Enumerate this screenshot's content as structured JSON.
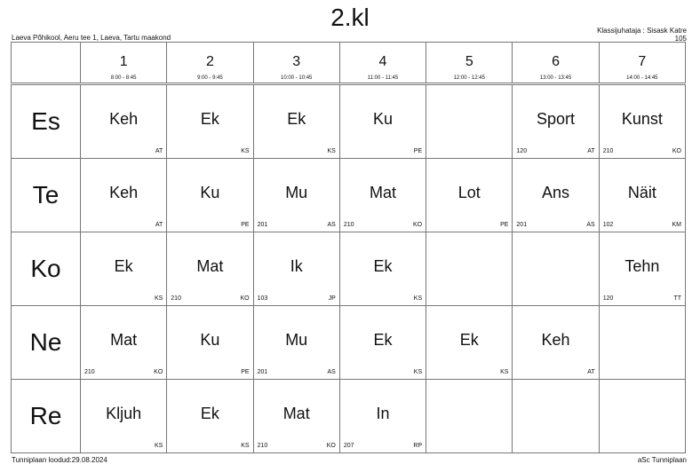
{
  "title": "2.kl",
  "school": "Laeva Põhikool, Aeru tee 1, Laeva, Tartu maakond",
  "class_teacher": "Klassijuhataja : Sisask Katre",
  "class_room": "105",
  "footer_left": "Tunniplaan loodud:29.08.2024",
  "footer_right": "aSc Tunniplaan",
  "periods": [
    {
      "num": "1",
      "time": "8:00 - 8:45"
    },
    {
      "num": "2",
      "time": "9:00 - 9:45"
    },
    {
      "num": "3",
      "time": "10:00 - 10:45"
    },
    {
      "num": "4",
      "time": "11:00 - 11:45"
    },
    {
      "num": "5",
      "time": "12:00 - 12:45"
    },
    {
      "num": "6",
      "time": "13:00 - 13:45"
    },
    {
      "num": "7",
      "time": "14:00 - 14:45"
    }
  ],
  "days": [
    {
      "name": "Es",
      "lessons": [
        {
          "s": "Keh",
          "r": "",
          "t": "AT"
        },
        {
          "s": "Ek",
          "r": "",
          "t": "KS"
        },
        {
          "s": "Ek",
          "r": "",
          "t": "KS"
        },
        {
          "s": "Ku",
          "r": "",
          "t": "PE"
        },
        null,
        {
          "s": "Sport",
          "r": "120",
          "t": "AT"
        },
        {
          "s": "Kunst",
          "r": "210",
          "t": "KO"
        }
      ]
    },
    {
      "name": "Te",
      "lessons": [
        {
          "s": "Keh",
          "r": "",
          "t": "AT"
        },
        {
          "s": "Ku",
          "r": "",
          "t": "PE"
        },
        {
          "s": "Mu",
          "r": "201",
          "t": "AS"
        },
        {
          "s": "Mat",
          "r": "210",
          "t": "KO"
        },
        {
          "s": "Lot",
          "r": "",
          "t": "PE"
        },
        {
          "s": "Ans",
          "r": "201",
          "t": "AS"
        },
        {
          "s": "Näit",
          "r": "102",
          "t": "KM"
        }
      ]
    },
    {
      "name": "Ko",
      "lessons": [
        {
          "s": "Ek",
          "r": "",
          "t": "KS"
        },
        {
          "s": "Mat",
          "r": "210",
          "t": "KO"
        },
        {
          "s": "Ik",
          "r": "103",
          "t": "JP"
        },
        {
          "s": "Ek",
          "r": "",
          "t": "KS"
        },
        null,
        null,
        {
          "s": "Tehn",
          "r": "120",
          "t": "TT"
        }
      ]
    },
    {
      "name": "Ne",
      "lessons": [
        {
          "s": "Mat",
          "r": "210",
          "t": "KO"
        },
        {
          "s": "Ku",
          "r": "",
          "t": "PE"
        },
        {
          "s": "Mu",
          "r": "201",
          "t": "AS"
        },
        {
          "s": "Ek",
          "r": "",
          "t": "KS"
        },
        {
          "s": "Ek",
          "r": "",
          "t": "KS"
        },
        {
          "s": "Keh",
          "r": "",
          "t": "AT"
        },
        null
      ]
    },
    {
      "name": "Re",
      "lessons": [
        {
          "s": "Kljuh",
          "r": "",
          "t": "KS"
        },
        {
          "s": "Ek",
          "r": "",
          "t": "KS"
        },
        {
          "s": "Mat",
          "r": "210",
          "t": "KO"
        },
        {
          "s": "In",
          "r": "207",
          "t": "RP"
        },
        null,
        null,
        null
      ]
    }
  ]
}
